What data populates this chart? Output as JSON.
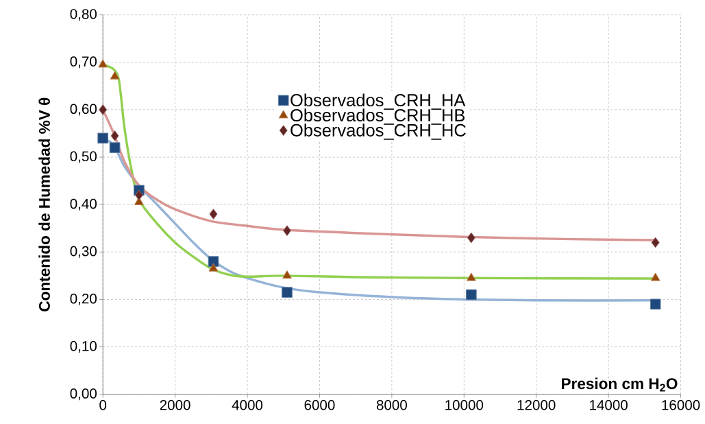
{
  "chart_data": {
    "type": "scatter",
    "ylabel": "Contenido de Humedad %V θ",
    "xlabel": "Presion cm H$_{2}$O",
    "xlim": [
      0,
      16000
    ],
    "ylim": [
      0,
      0.8
    ],
    "xticks": [
      0,
      2000,
      4000,
      6000,
      8000,
      10000,
      12000,
      14000,
      16000
    ],
    "yticks": [
      {
        "value": 0,
        "label": "0,00"
      },
      {
        "value": 0.1,
        "label": "0,10"
      },
      {
        "value": 0.2,
        "label": "0,20"
      },
      {
        "value": 0.3,
        "label": "0,30"
      },
      {
        "value": 0.4,
        "label": "0,40"
      },
      {
        "value": 0.5,
        "label": "0,50"
      },
      {
        "value": 0.6,
        "label": "0,60"
      },
      {
        "value": 0.7,
        "label": "0,70"
      },
      {
        "value": 0.8,
        "label": "0,80"
      }
    ],
    "grid": true,
    "legend": "top",
    "line_style": "solid",
    "series": [
      {
        "type": "line",
        "color": "#95b3d7",
        "x": [
          0,
          300,
          600,
          1000,
          1500,
          2000,
          2500,
          3000,
          3500,
          4000,
          5000,
          6000,
          8000,
          10000,
          12000,
          15300
        ],
        "values": [
          0.54,
          0.525,
          0.48,
          0.44,
          0.4,
          0.36,
          0.32,
          0.285,
          0.26,
          0.245,
          0.225,
          0.215,
          0.205,
          0.2,
          0.198,
          0.198
        ]
      },
      {
        "type": "line",
        "color": "#92d050",
        "x": [
          0,
          300,
          450,
          600,
          800,
          1000,
          1500,
          2000,
          2500,
          3000,
          3500,
          4000,
          5000,
          7000,
          10000,
          15300
        ],
        "values": [
          0.695,
          0.685,
          0.66,
          0.56,
          0.47,
          0.41,
          0.36,
          0.32,
          0.29,
          0.265,
          0.252,
          0.248,
          0.25,
          0.247,
          0.245,
          0.244
        ]
      },
      {
        "type": "line",
        "color": "#d99694",
        "x": [
          0,
          300,
          600,
          1000,
          1500,
          2000,
          3000,
          4000,
          5000,
          7000,
          10000,
          13000,
          15300
        ],
        "values": [
          0.6,
          0.55,
          0.49,
          0.44,
          0.41,
          0.39,
          0.365,
          0.355,
          0.347,
          0.34,
          0.332,
          0.327,
          0.325
        ]
      },
      {
        "type": "scatter",
        "name": "Observados_CRH_HA",
        "color": "#1f497d",
        "marker": "square",
        "x": [
          0,
          330,
          1000,
          3060,
          5100,
          10200,
          15300
        ],
        "values": [
          0.54,
          0.52,
          0.43,
          0.28,
          0.215,
          0.21,
          0.19
        ]
      },
      {
        "type": "scatter",
        "name": "Observados_CRH_HB",
        "color": "#984807",
        "marker": "triangle",
        "x": [
          0,
          330,
          1000,
          3060,
          5100,
          10200,
          15300
        ],
        "values": [
          0.695,
          0.67,
          0.405,
          0.265,
          0.25,
          0.245,
          0.245
        ]
      },
      {
        "type": "scatter",
        "name": "Observados_CRH_HC",
        "color": "#632523",
        "marker": "diamond",
        "x": [
          0,
          330,
          1000,
          3060,
          5100,
          10200,
          15300
        ],
        "values": [
          0.6,
          0.545,
          0.42,
          0.38,
          0.345,
          0.33,
          0.32
        ]
      }
    ]
  }
}
